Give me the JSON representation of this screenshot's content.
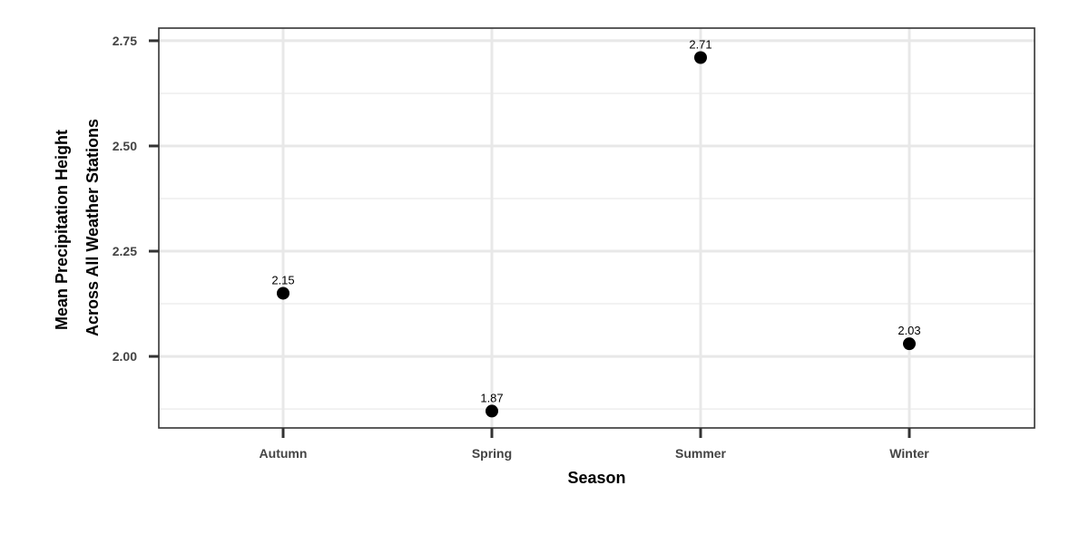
{
  "chart_data": {
    "type": "scatter",
    "categories": [
      "Autumn",
      "Spring",
      "Summer",
      "Winter"
    ],
    "values": [
      2.15,
      1.87,
      2.71,
      2.03
    ],
    "data_labels": [
      "2.15",
      "1.87",
      "2.71",
      "2.03"
    ],
    "xlabel": "Season",
    "ylabel_lines": [
      "Mean Precipitation Height",
      "Across All Weather Stations"
    ],
    "ylim": [
      1.83,
      2.78
    ],
    "yticks": [
      2.0,
      2.25,
      2.5,
      2.75
    ],
    "ytick_labels": [
      "2.00",
      "2.25",
      "2.50",
      "2.75"
    ],
    "yminor": [
      1.875,
      2.125,
      2.375,
      2.625
    ],
    "grid": true,
    "legend": "none",
    "colors": {
      "point": "#000000",
      "grid": "#e8e8e8",
      "border": "#333333",
      "tick_label": "#444444"
    }
  }
}
